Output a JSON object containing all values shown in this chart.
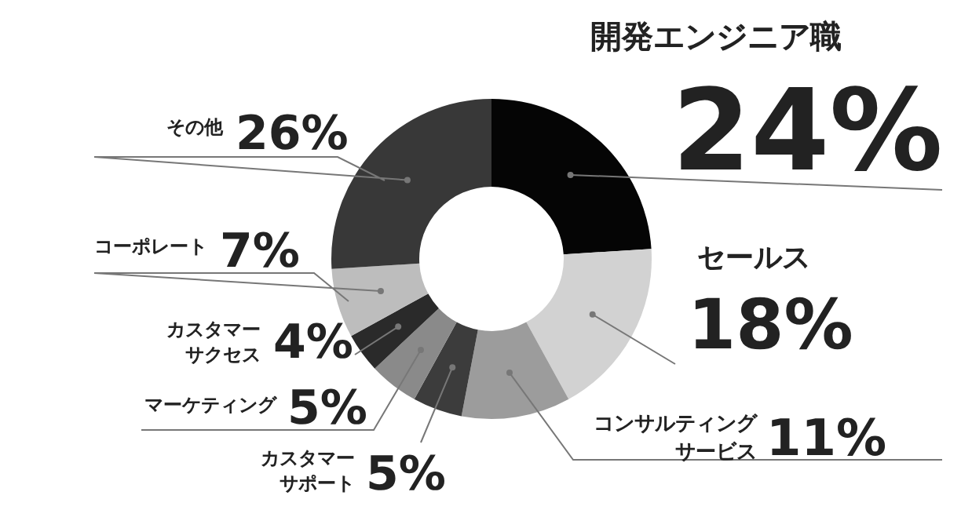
{
  "chart_data": {
    "type": "donut",
    "categories": [
      "開発エンジニア職",
      "セールス",
      "コンサルティングサービス",
      "カスタマーサポート",
      "マーケティング",
      "カスタマーサクセス",
      "コーポレート",
      "その他"
    ],
    "values": [
      24,
      18,
      11,
      5,
      5,
      4,
      7,
      26
    ],
    "value_labels": [
      "24%",
      "18%",
      "11%",
      "5%",
      "5%",
      "4%",
      "7%",
      "26%"
    ],
    "colors": [
      "#050505",
      "#d2d2d2",
      "#9c9c9c",
      "#3c3c3c",
      "#8a8a8a",
      "#2a2a2a",
      "#bdbdbd",
      "#383838"
    ]
  }
}
